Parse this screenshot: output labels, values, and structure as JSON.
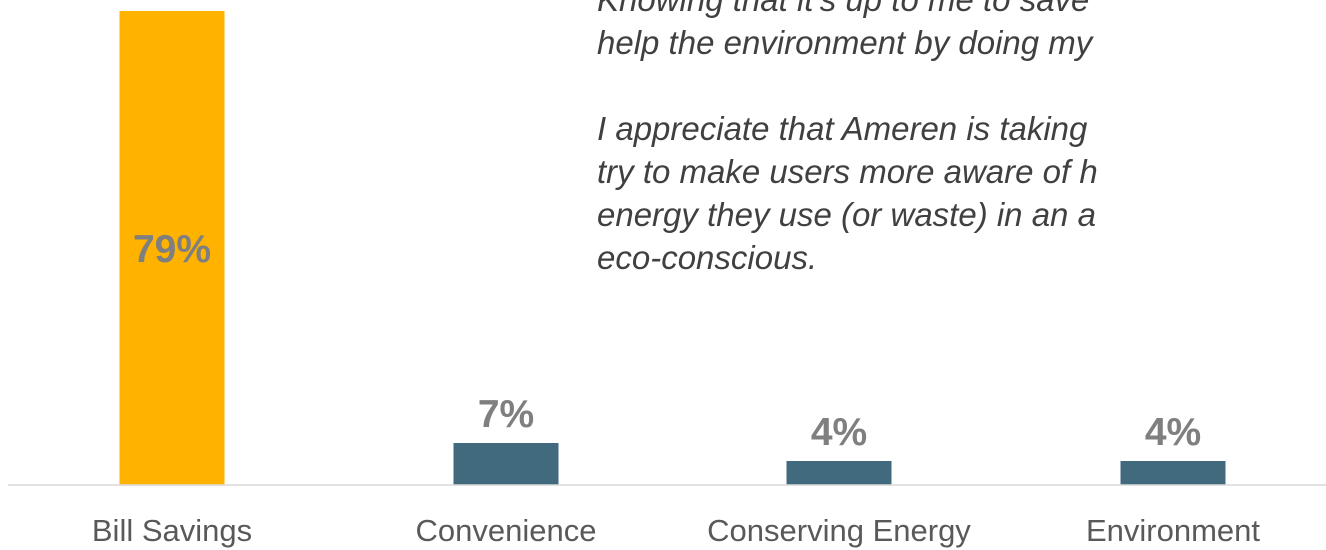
{
  "chart_data": {
    "type": "bar",
    "categories": [
      "Bill Savings",
      "Convenience",
      "Conserving Energy",
      "Environment"
    ],
    "values": [
      79,
      7,
      4,
      4
    ],
    "data_labels": [
      "79%",
      "7%",
      "4%",
      "4%"
    ],
    "unit": "%",
    "ylim": [
      0,
      100
    ],
    "grid": false,
    "legend": "none",
    "colors": [
      "#FFB300",
      "#416A7F",
      "#416A7F",
      "#416A7F"
    ],
    "label_color": "#7F7F7F"
  },
  "quote": {
    "lines_1": [
      "Knowing that it's up to me to save",
      "help the environment by doing my"
    ],
    "lines_2": [
      "I appreciate that Ameren is taking",
      "try to make users more aware of h",
      "energy they use (or waste) in an a",
      "eco-conscious."
    ]
  }
}
